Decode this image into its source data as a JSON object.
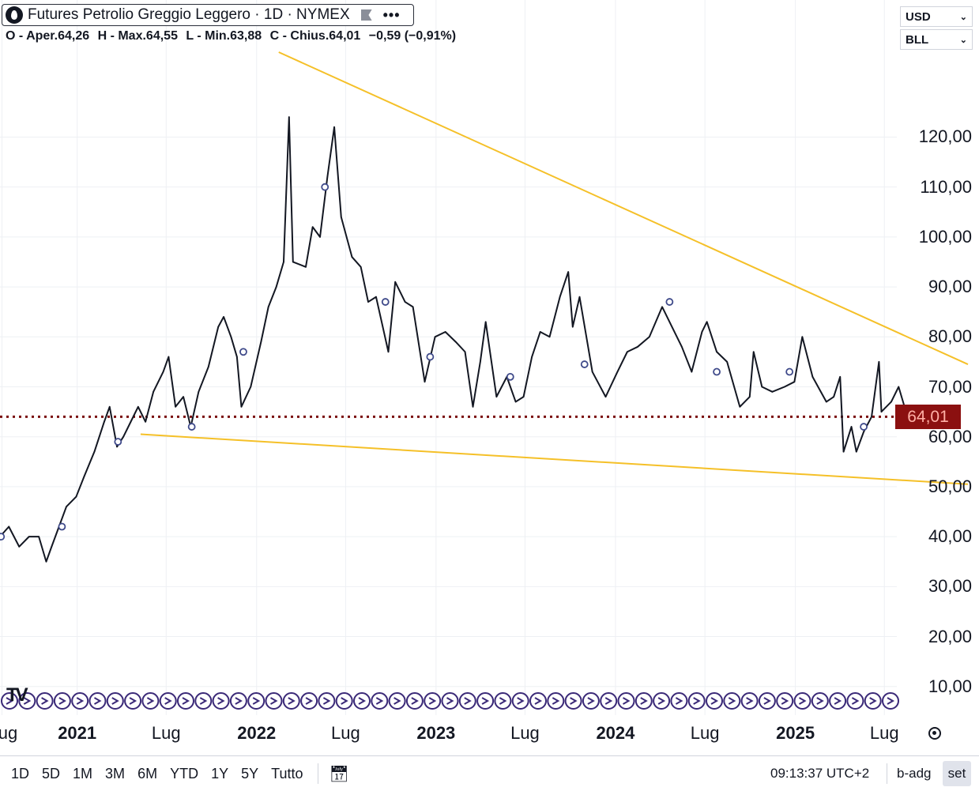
{
  "legend": {
    "title": "Futures Petrolio Greggio Leggero · 1D · NYMEX",
    "ohlc": [
      "O - Aper.64,26",
      "H - Max.64,55",
      "L - Min.63,88",
      "C - Chius.64,01",
      "−0,59 (−0,91%)"
    ]
  },
  "selectors": {
    "currency": "USD",
    "unit": "BLL"
  },
  "last_price_label": "64,01",
  "colors": {
    "price_line": "#131722",
    "trendline": "#f5c028",
    "last_price_line": "#7a0d0d",
    "badge": "#8b1010",
    "event_marker": "#3f4a8a"
  },
  "watermark_logo": "TV",
  "bottom_bar": {
    "ranges": [
      "1D",
      "5D",
      "1M",
      "3M",
      "6M",
      "YTD",
      "1Y",
      "5Y",
      "Tutto"
    ],
    "time": "09:13:37 UTC+2",
    "adjust": "b-adg",
    "settings": "set"
  },
  "chart_data": {
    "type": "line",
    "y_axis_labels": [
      "120,00",
      "110,00",
      "100,00",
      "90,00",
      "80,00",
      "70,00",
      "60,00",
      "50,00",
      "40,00",
      "30,00",
      "20,00",
      "10,00"
    ],
    "ylim": [
      3,
      137
    ],
    "x_axis_labels": [
      {
        "date": "2020-08-01",
        "label": "ug",
        "year": false
      },
      {
        "date": "2021-01-01",
        "label": "2021",
        "year": true
      },
      {
        "date": "2021-07-01",
        "label": "Lug",
        "year": false
      },
      {
        "date": "2022-01-01",
        "label": "2022",
        "year": true
      },
      {
        "date": "2022-07-01",
        "label": "Lug",
        "year": false
      },
      {
        "date": "2023-01-01",
        "label": "2023",
        "year": true
      },
      {
        "date": "2023-07-01",
        "label": "Lug",
        "year": false
      },
      {
        "date": "2024-01-01",
        "label": "2024",
        "year": true
      },
      {
        "date": "2024-07-01",
        "label": "Lug",
        "year": false
      },
      {
        "date": "2025-01-01",
        "label": "2025",
        "year": true
      },
      {
        "date": "2025-07-01",
        "label": "Lug",
        "year": false
      }
    ],
    "xlim": [
      "2020-07-28",
      "2025-12-18"
    ],
    "series": [
      {
        "points": [
          [
            "2020-07-28",
            40
          ],
          [
            "2020-08-15",
            42
          ],
          [
            "2020-09-05",
            38
          ],
          [
            "2020-09-25",
            40
          ],
          [
            "2020-10-15",
            40
          ],
          [
            "2020-10-30",
            35
          ],
          [
            "2020-11-10",
            38
          ],
          [
            "2020-11-25",
            42
          ],
          [
            "2020-12-10",
            46
          ],
          [
            "2020-12-30",
            48
          ],
          [
            "2021-01-15",
            52
          ],
          [
            "2021-02-05",
            57
          ],
          [
            "2021-02-25",
            63
          ],
          [
            "2021-03-08",
            66
          ],
          [
            "2021-03-23",
            58
          ],
          [
            "2021-04-05",
            60
          ],
          [
            "2021-04-20",
            63
          ],
          [
            "2021-05-05",
            66
          ],
          [
            "2021-05-20",
            63
          ],
          [
            "2021-06-05",
            69
          ],
          [
            "2021-06-25",
            73
          ],
          [
            "2021-07-06",
            76
          ],
          [
            "2021-07-20",
            66
          ],
          [
            "2021-08-05",
            68
          ],
          [
            "2021-08-20",
            62
          ],
          [
            "2021-09-05",
            69
          ],
          [
            "2021-09-25",
            74
          ],
          [
            "2021-10-15",
            82
          ],
          [
            "2021-10-26",
            84
          ],
          [
            "2021-11-10",
            80
          ],
          [
            "2021-11-22",
            76
          ],
          [
            "2021-12-01",
            66
          ],
          [
            "2021-12-20",
            70
          ],
          [
            "2022-01-10",
            79
          ],
          [
            "2022-01-25",
            86
          ],
          [
            "2022-02-10",
            90
          ],
          [
            "2022-02-25",
            95
          ],
          [
            "2022-03-08",
            124
          ],
          [
            "2022-03-16",
            95
          ],
          [
            "2022-04-11",
            94
          ],
          [
            "2022-04-25",
            102
          ],
          [
            "2022-05-10",
            100
          ],
          [
            "2022-05-25",
            112
          ],
          [
            "2022-06-08",
            122
          ],
          [
            "2022-06-22",
            104
          ],
          [
            "2022-07-14",
            96
          ],
          [
            "2022-08-01",
            94
          ],
          [
            "2022-08-16",
            87
          ],
          [
            "2022-09-01",
            88
          ],
          [
            "2022-09-26",
            77
          ],
          [
            "2022-10-10",
            91
          ],
          [
            "2022-10-30",
            87
          ],
          [
            "2022-11-15",
            86
          ],
          [
            "2022-12-09",
            71
          ],
          [
            "2022-12-30",
            80
          ],
          [
            "2023-01-20",
            81
          ],
          [
            "2023-02-10",
            79
          ],
          [
            "2023-03-01",
            77
          ],
          [
            "2023-03-17",
            66
          ],
          [
            "2023-04-01",
            75
          ],
          [
            "2023-04-12",
            83
          ],
          [
            "2023-05-04",
            68
          ],
          [
            "2023-05-25",
            72
          ],
          [
            "2023-06-12",
            67
          ],
          [
            "2023-06-28",
            68
          ],
          [
            "2023-07-15",
            76
          ],
          [
            "2023-08-01",
            81
          ],
          [
            "2023-08-20",
            80
          ],
          [
            "2023-09-10",
            88
          ],
          [
            "2023-09-27",
            93
          ],
          [
            "2023-10-06",
            82
          ],
          [
            "2023-10-20",
            88
          ],
          [
            "2023-11-15",
            73
          ],
          [
            "2023-12-12",
            68
          ],
          [
            "2024-01-05",
            73
          ],
          [
            "2024-01-25",
            77
          ],
          [
            "2024-02-15",
            78
          ],
          [
            "2024-03-10",
            80
          ],
          [
            "2024-04-05",
            86
          ],
          [
            "2024-04-25",
            82
          ],
          [
            "2024-05-15",
            78
          ],
          [
            "2024-06-04",
            73
          ],
          [
            "2024-06-25",
            81
          ],
          [
            "2024-07-05",
            83
          ],
          [
            "2024-07-25",
            77
          ],
          [
            "2024-08-15",
            75
          ],
          [
            "2024-09-10",
            66
          ],
          [
            "2024-09-30",
            68
          ],
          [
            "2024-10-08",
            77
          ],
          [
            "2024-10-25",
            70
          ],
          [
            "2024-11-15",
            69
          ],
          [
            "2024-12-10",
            70
          ],
          [
            "2024-12-30",
            71
          ],
          [
            "2025-01-15",
            80
          ],
          [
            "2025-02-05",
            72
          ],
          [
            "2025-03-05",
            67
          ],
          [
            "2025-03-20",
            68
          ],
          [
            "2025-04-02",
            72
          ],
          [
            "2025-04-09",
            57
          ],
          [
            "2025-04-25",
            62
          ],
          [
            "2025-05-05",
            57
          ],
          [
            "2025-05-20",
            61
          ],
          [
            "2025-06-05",
            64
          ],
          [
            "2025-06-20",
            75
          ],
          [
            "2025-06-25",
            65
          ],
          [
            "2025-07-15",
            67
          ],
          [
            "2025-07-30",
            70
          ],
          [
            "2025-08-20",
            63
          ],
          [
            "2025-09-05",
            62
          ],
          [
            "2025-09-15",
            64.01
          ]
        ]
      }
    ],
    "trendlines": [
      {
        "from": [
          "2022-02-15",
          137
        ],
        "to": [
          "2025-12-18",
          74.5
        ]
      },
      {
        "from": [
          "2021-05-10",
          60.5
        ],
        "to": [
          "2025-12-18",
          50.5
        ]
      }
    ],
    "last_price": 64.01,
    "event_markers": [
      [
        "2020-07-30",
        40
      ],
      [
        "2020-12-01",
        42
      ],
      [
        "2021-03-25",
        59
      ],
      [
        "2021-08-22",
        62
      ],
      [
        "2021-12-05",
        77
      ],
      [
        "2022-05-20",
        110
      ],
      [
        "2022-09-20",
        87
      ],
      [
        "2022-12-20",
        76
      ],
      [
        "2023-06-01",
        72
      ],
      [
        "2023-10-30",
        74.5
      ],
      [
        "2024-04-20",
        87
      ],
      [
        "2024-07-25",
        73
      ],
      [
        "2024-12-20",
        73
      ],
      [
        "2025-05-20",
        62
      ]
    ]
  }
}
